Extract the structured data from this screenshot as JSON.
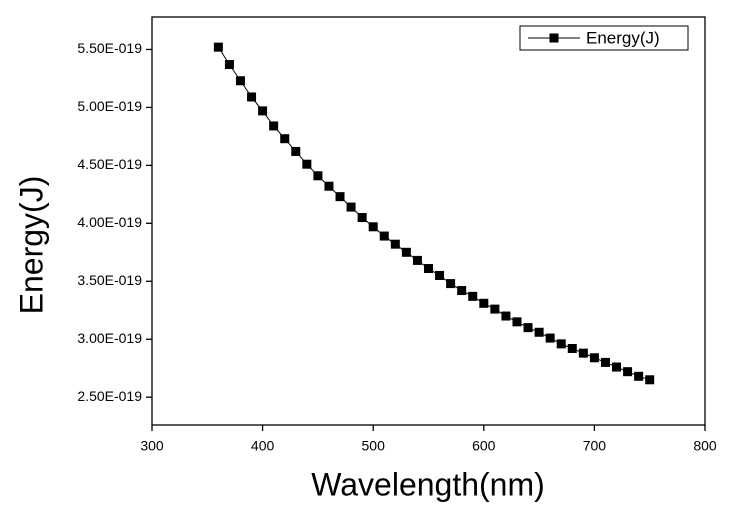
{
  "chart_data": {
    "type": "line",
    "x_label": "Wavelength(nm)",
    "y_label": "Energy(J)",
    "x": [
      360,
      370,
      380,
      390,
      400,
      410,
      420,
      430,
      440,
      450,
      460,
      470,
      480,
      490,
      500,
      510,
      520,
      530,
      540,
      550,
      560,
      570,
      580,
      590,
      600,
      610,
      620,
      630,
      640,
      650,
      660,
      670,
      680,
      690,
      700,
      710,
      720,
      730,
      740,
      750
    ],
    "series": [
      {
        "name": "Energy(J)",
        "color": "#000000",
        "values": [
          5.52e-19,
          5.37e-19,
          5.23e-19,
          5.09e-19,
          4.97e-19,
          4.84e-19,
          4.73e-19,
          4.62e-19,
          4.51e-19,
          4.41e-19,
          4.32e-19,
          4.23e-19,
          4.14e-19,
          4.05e-19,
          3.97e-19,
          3.89e-19,
          3.82e-19,
          3.75e-19,
          3.68e-19,
          3.61e-19,
          3.55e-19,
          3.48e-19,
          3.42e-19,
          3.37e-19,
          3.31e-19,
          3.26e-19,
          3.2e-19,
          3.15e-19,
          3.1e-19,
          3.06e-19,
          3.01e-19,
          2.96e-19,
          2.92e-19,
          2.88e-19,
          2.84e-19,
          2.8e-19,
          2.76e-19,
          2.72e-19,
          2.68e-19,
          2.65e-19
        ]
      }
    ],
    "xlim": [
      300,
      800
    ],
    "xticks": [
      300,
      400,
      500,
      600,
      700,
      800
    ],
    "ylim": [
      2.26e-19,
      5.78e-19
    ],
    "yticks": [
      {
        "value": 2.5e-19,
        "label": "2.50E-019"
      },
      {
        "value": 3e-19,
        "label": "3.00E-019"
      },
      {
        "value": 3.5e-19,
        "label": "3.50E-019"
      },
      {
        "value": 4e-19,
        "label": "4.00E-019"
      },
      {
        "value": 4.5e-19,
        "label": "4.50E-019"
      },
      {
        "value": 5e-19,
        "label": "5.00E-019"
      },
      {
        "value": 5.5e-19,
        "label": "5.50E-019"
      }
    ],
    "legend": "top-right",
    "grid": false
  }
}
